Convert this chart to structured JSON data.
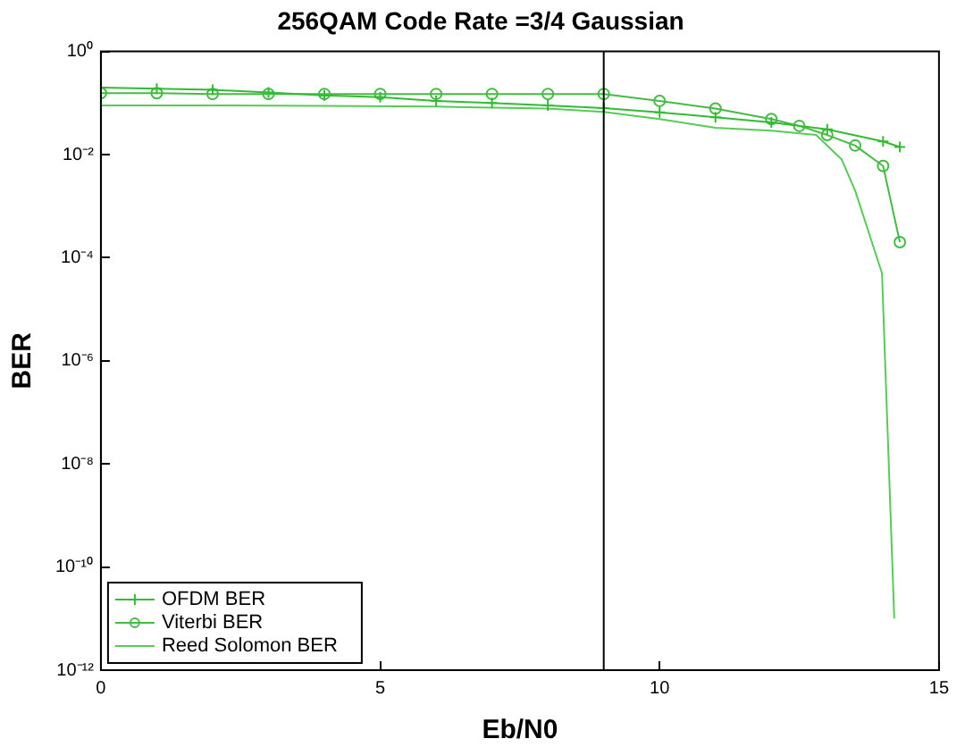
{
  "chart_data": {
    "type": "line",
    "title": "256QAM Code Rate =3/4 Gaussian",
    "xlabel": "Eb/N0",
    "ylabel": "BER",
    "log": "y",
    "xlim": [
      0,
      15
    ],
    "xticks": [
      0,
      5,
      10,
      15
    ],
    "ylim": [
      1e-12,
      1
    ],
    "yticks": [
      {
        "value": 1,
        "label": "10⁰"
      },
      {
        "value": 0.01,
        "label": "10⁻²"
      },
      {
        "value": 0.0001,
        "label": "10⁻⁴"
      },
      {
        "value": 1e-06,
        "label": "10⁻⁶"
      },
      {
        "value": 1e-08,
        "label": "10⁻⁸"
      },
      {
        "value": 1e-10,
        "label": "10⁻¹⁰"
      },
      {
        "value": 1e-12,
        "label": "10⁻¹²"
      }
    ],
    "grid": false,
    "legend": "bottom left",
    "line_style": "solid",
    "ref_lines": [
      {
        "axis": "x",
        "value": 9,
        "color": "#000000"
      }
    ],
    "series": [
      {
        "name": "OFDM BER",
        "color": "#33bb33",
        "marker": "cross",
        "x": [
          0,
          1,
          2,
          3,
          4,
          5,
          6,
          7,
          8,
          9,
          10,
          11,
          12,
          13,
          14,
          14.3
        ],
        "values": [
          0.2,
          0.19,
          0.18,
          0.16,
          0.14,
          0.13,
          0.11,
          0.1,
          0.09,
          0.08,
          0.066,
          0.053,
          0.042,
          0.031,
          0.018,
          0.014
        ]
      },
      {
        "name": "Viterbi BER",
        "color": "#44bb44",
        "marker": "circle",
        "x": [
          0,
          1,
          2,
          3,
          4,
          5,
          6,
          7,
          8,
          9,
          10,
          11,
          12,
          12.5,
          13,
          13.5,
          14,
          14.3
        ],
        "values": [
          0.155,
          0.155,
          0.15,
          0.15,
          0.15,
          0.15,
          0.15,
          0.15,
          0.15,
          0.15,
          0.11,
          0.078,
          0.049,
          0.036,
          0.024,
          0.015,
          0.006,
          0.0002
        ]
      },
      {
        "name": "Reed Solomon BER",
        "color": "#55cc55",
        "marker": "none",
        "x": [
          0,
          2,
          4,
          6,
          8,
          9,
          10,
          11,
          12,
          12.8,
          13.26,
          13.5,
          13.98,
          14.2
        ],
        "values": [
          0.09,
          0.09,
          0.088,
          0.085,
          0.078,
          0.067,
          0.049,
          0.033,
          0.029,
          0.024,
          0.008,
          0.002,
          5e-05,
          1e-11
        ]
      }
    ]
  }
}
